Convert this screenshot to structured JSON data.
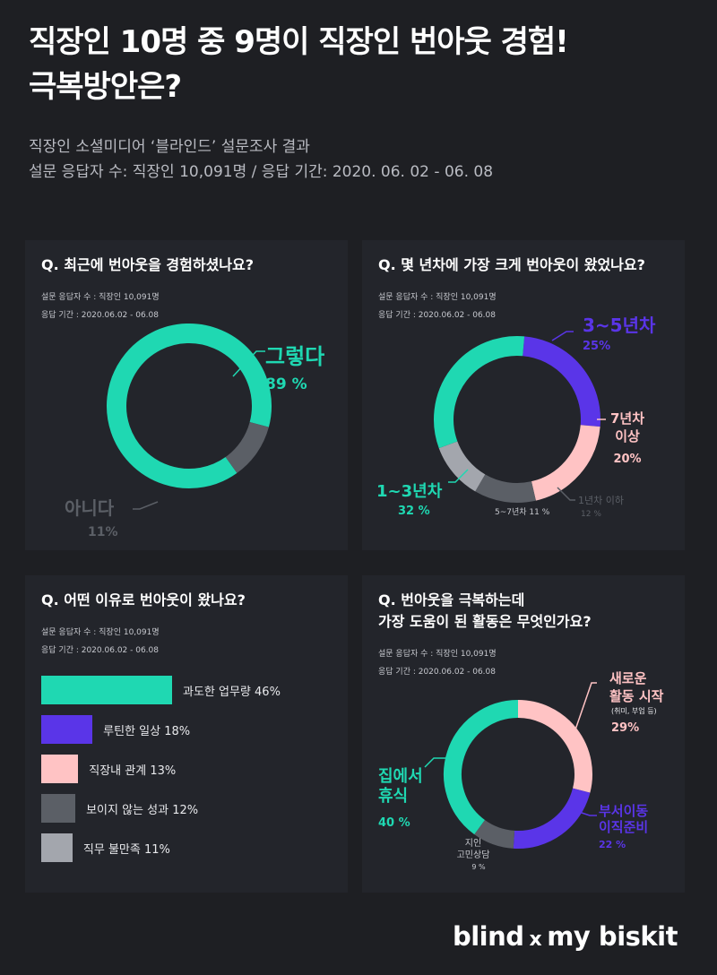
{
  "header": {
    "title_line1": "직장인 10명 중 9명이 직장인 번아웃 경험!",
    "title_line2": "극복방안은?",
    "subtitle_line1": "직장인 소셜미디어 ‘블라인드’ 설문조사 결과",
    "subtitle_line2": "설문 응답자 수: 직장인 10,091명 / 응답 기간: 2020. 06. 02 - 06. 08"
  },
  "cards": [
    {
      "question": "Q. 최근에 번아웃을 경험하셨나요?",
      "meta1": "설문 응답자 수 : 직장인 10,091명",
      "meta2": "응답 기간 : 2020.06.02 - 06.08"
    },
    {
      "question": "Q. 몇 년차에 가장 크게 번아웃이 왔었나요?",
      "meta1": "설문 응답자 수 : 직장인 10,091명",
      "meta2": "응답 기간 : 2020.06.02 - 06.08"
    },
    {
      "question": "Q. 어떤 이유로 번아웃이 왔나요?",
      "meta1": "설문 응답자 수 : 직장인 10,091명",
      "meta2": "응답 기간 : 2020.06.02 - 06.08"
    },
    {
      "question": "Q. 번아웃을 극복하는데\n가장 도움이 된 활동은 무엇인가요?",
      "meta1": "설문 응답자 수 : 직장인 10,091명",
      "meta2": "응답 기간 : 2020.06.02 - 06.08"
    }
  ],
  "colors": {
    "teal": "#1fd8b2",
    "purple": "#5a35e8",
    "pink": "#ffc3c4",
    "dark_gray": "#5b5f66",
    "light_gray": "#a3a6ad"
  },
  "chart_data": [
    {
      "type": "pie",
      "slices": [
        {
          "label": "그렇다",
          "value": 89,
          "value_label": "89 %",
          "color": "#1fd8b2"
        },
        {
          "label": "아니다",
          "value": 11,
          "value_label": "11%",
          "color": "#5b5f66"
        }
      ]
    },
    {
      "type": "pie",
      "slices": [
        {
          "label": "3~5년차",
          "value": 25,
          "value_label": "25%",
          "color": "#5a35e8"
        },
        {
          "label": "7년차\n이상",
          "value": 20,
          "value_label": "20%",
          "color": "#ffc3c4"
        },
        {
          "label": "1년차 이하",
          "value": 12,
          "value_label": "12 %",
          "color": "#5b5f66"
        },
        {
          "label": "5~7년차",
          "value": 11,
          "value_label": "11 %",
          "color": "#a3a6ad"
        },
        {
          "label": "1~3년차",
          "value": 32,
          "value_label": "32 %",
          "color": "#1fd8b2"
        }
      ]
    },
    {
      "type": "bar",
      "categories": [
        "과도한 업무량",
        "루틴한 일상",
        "직장내 관계",
        "보이지 않는 성과",
        "직무 불만족"
      ],
      "values": [
        46,
        18,
        13,
        12,
        11
      ],
      "value_labels": [
        "46%",
        "18%",
        "13%",
        "12%",
        "11%"
      ],
      "colors": [
        "#1fd8b2",
        "#5a35e8",
        "#ffc3c4",
        "#5b5f66",
        "#a3a6ad"
      ]
    },
    {
      "type": "pie",
      "slices": [
        {
          "label": "새로운\n활동 시작",
          "sublabel": "(취미, 부업 등)",
          "value": 29,
          "value_label": "29%",
          "color": "#ffc3c4"
        },
        {
          "label": "부서이동\n이직준비",
          "value": 22,
          "value_label": "22 %",
          "color": "#5a35e8"
        },
        {
          "label": "지인\n고민상담",
          "value": 9,
          "value_label": "9 %",
          "color": "#5b5f66"
        },
        {
          "label": "집에서\n휴식",
          "value": 40,
          "value_label": "40 %",
          "color": "#1fd8b2"
        }
      ]
    }
  ],
  "footer": {
    "brand1": "blind",
    "x": "x",
    "brand2": "my biskit"
  }
}
